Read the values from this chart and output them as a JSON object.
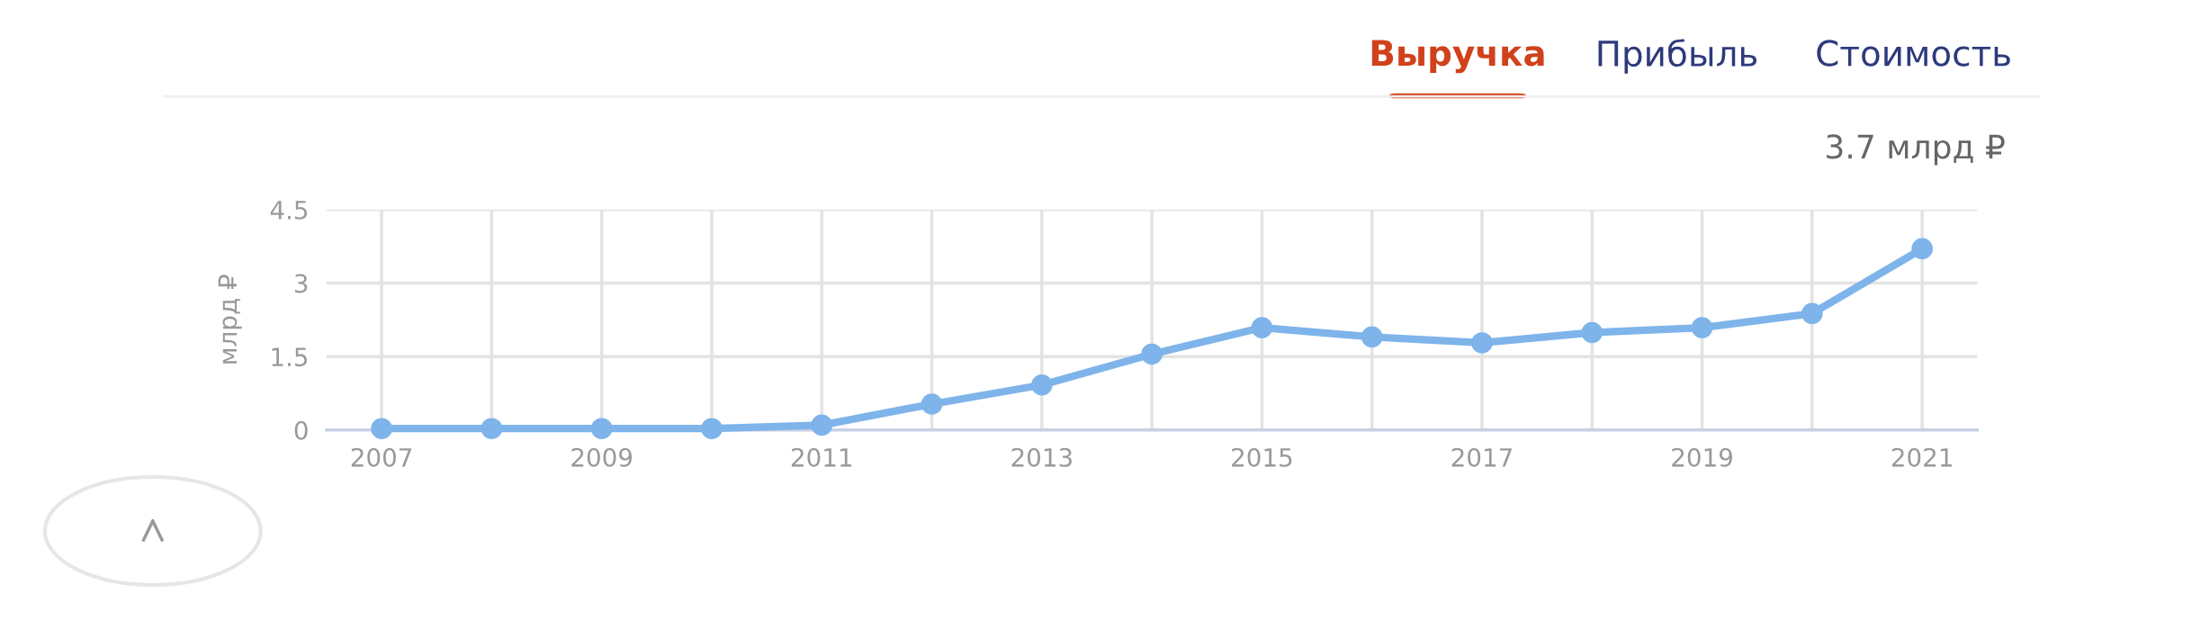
{
  "chart_data": {
    "type": "line",
    "title": "Выручка",
    "annotations": [
      "Прибыль",
      "Стоимость",
      "3.7 млрд ₽"
    ],
    "ylabel": "млрд ₽",
    "x": [
      2007,
      2008,
      2009,
      2010,
      2011,
      2012,
      2013,
      2014,
      2015,
      2016,
      2017,
      2018,
      2019,
      2020,
      2021
    ],
    "series": [
      {
        "color": "#7eb4ea",
        "values": [
          0.03,
          0.03,
          0.03,
          0.03,
          0.1,
          0.53,
          0.92,
          1.55,
          2.09,
          1.9,
          1.78,
          1.99,
          2.09,
          2.38,
          3.7
        ]
      }
    ],
    "xlim": [
      2006.5,
      2021.5
    ],
    "xticks": [
      2007,
      {
        "value": 2008,
        "label": null
      },
      2009,
      {
        "value": 2010,
        "label": null
      },
      2011,
      {
        "value": 2012,
        "label": null
      },
      2013,
      {
        "value": 2014,
        "label": null
      },
      2015,
      {
        "value": 2016,
        "label": null
      },
      2017,
      {
        "value": 2018,
        "label": null
      },
      2019,
      {
        "value": 2020,
        "label": null
      },
      2021
    ],
    "ylim": [
      0,
      4.5
    ],
    "yticks": [
      0,
      1.5,
      3,
      4.5
    ],
    "grid": true,
    "marker": "circle",
    "line_style": "solid"
  }
}
